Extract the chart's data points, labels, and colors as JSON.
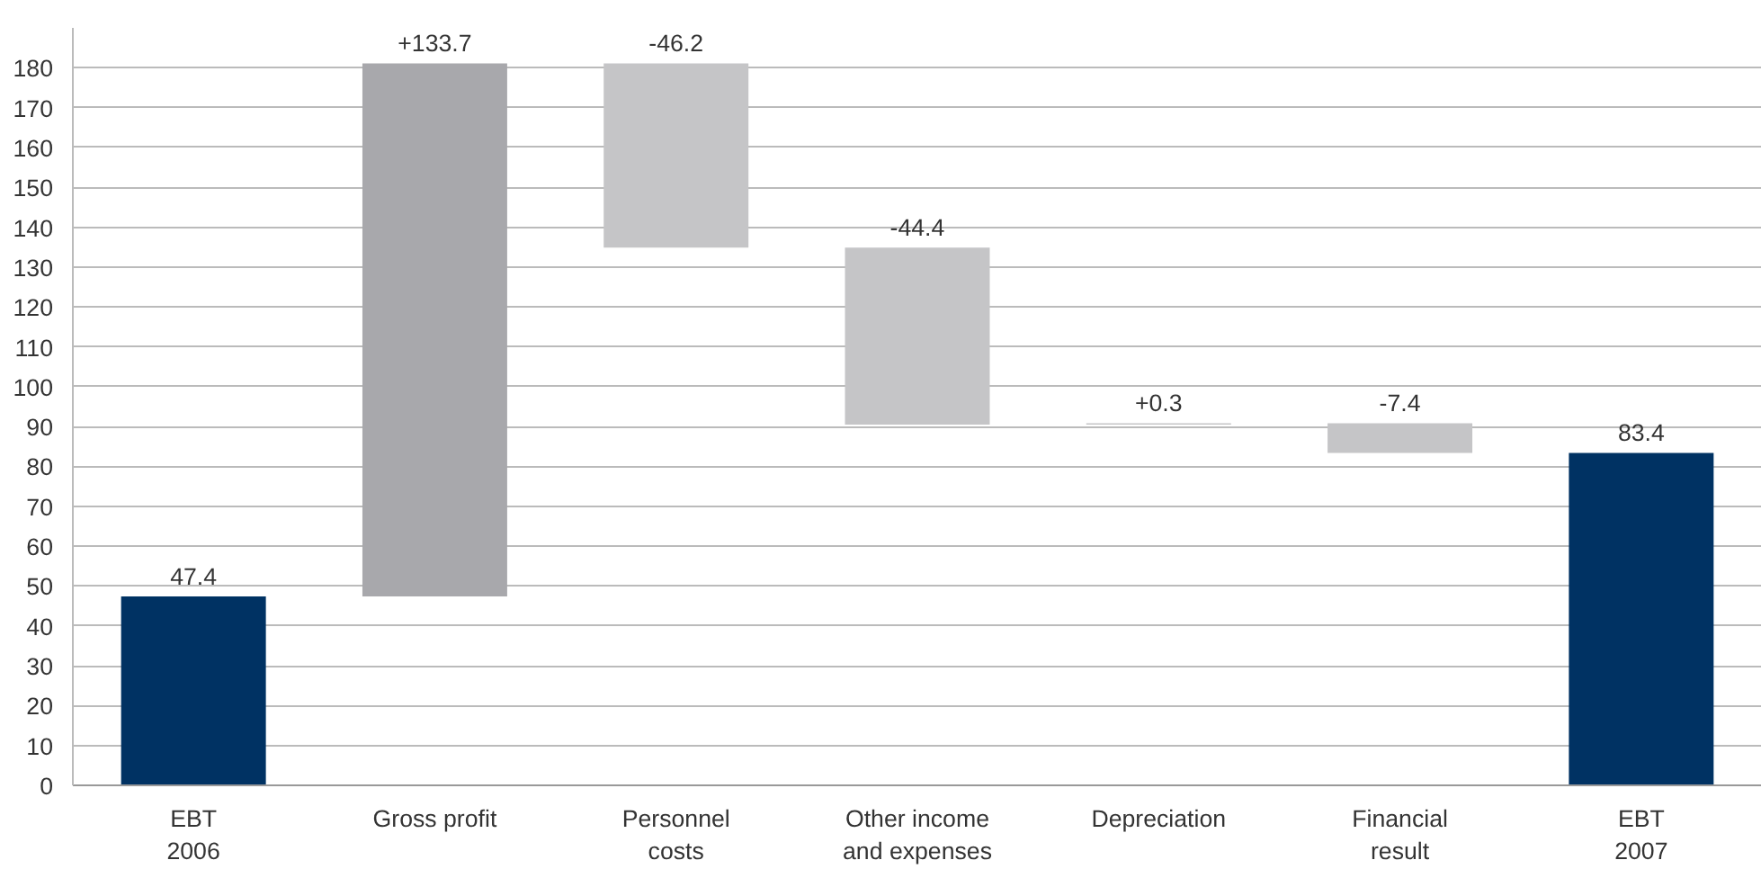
{
  "chart_data": {
    "type": "bar",
    "categories": [
      "EBT\n2006",
      "Gross profit",
      "Personnel\ncosts",
      "Other income\nand expenses",
      "Depreciation",
      "Financial\nresult",
      "EBT\n2007"
    ],
    "values": [
      47.4,
      133.7,
      -46.2,
      -44.4,
      0.3,
      -7.4,
      83.4
    ],
    "base": [
      0,
      47.4,
      181.1,
      134.9,
      90.5,
      90.8,
      0
    ],
    "colors": [
      "#003263",
      "#a8a8ac",
      "#c5c5c7",
      "#c5c5c7",
      "#c5c5c7",
      "#c5c5c7",
      "#003263"
    ],
    "value_labels": [
      "47.4",
      "+133.7",
      "-46.2",
      "-44.4",
      "+0.3",
      "-7.4",
      "83.4"
    ],
    "ylim": [
      0,
      190
    ],
    "yticks": [
      0,
      10,
      20,
      30,
      40,
      50,
      60,
      70,
      80,
      90,
      100,
      110,
      120,
      130,
      140,
      150,
      160,
      170,
      180
    ],
    "grid": "y"
  }
}
